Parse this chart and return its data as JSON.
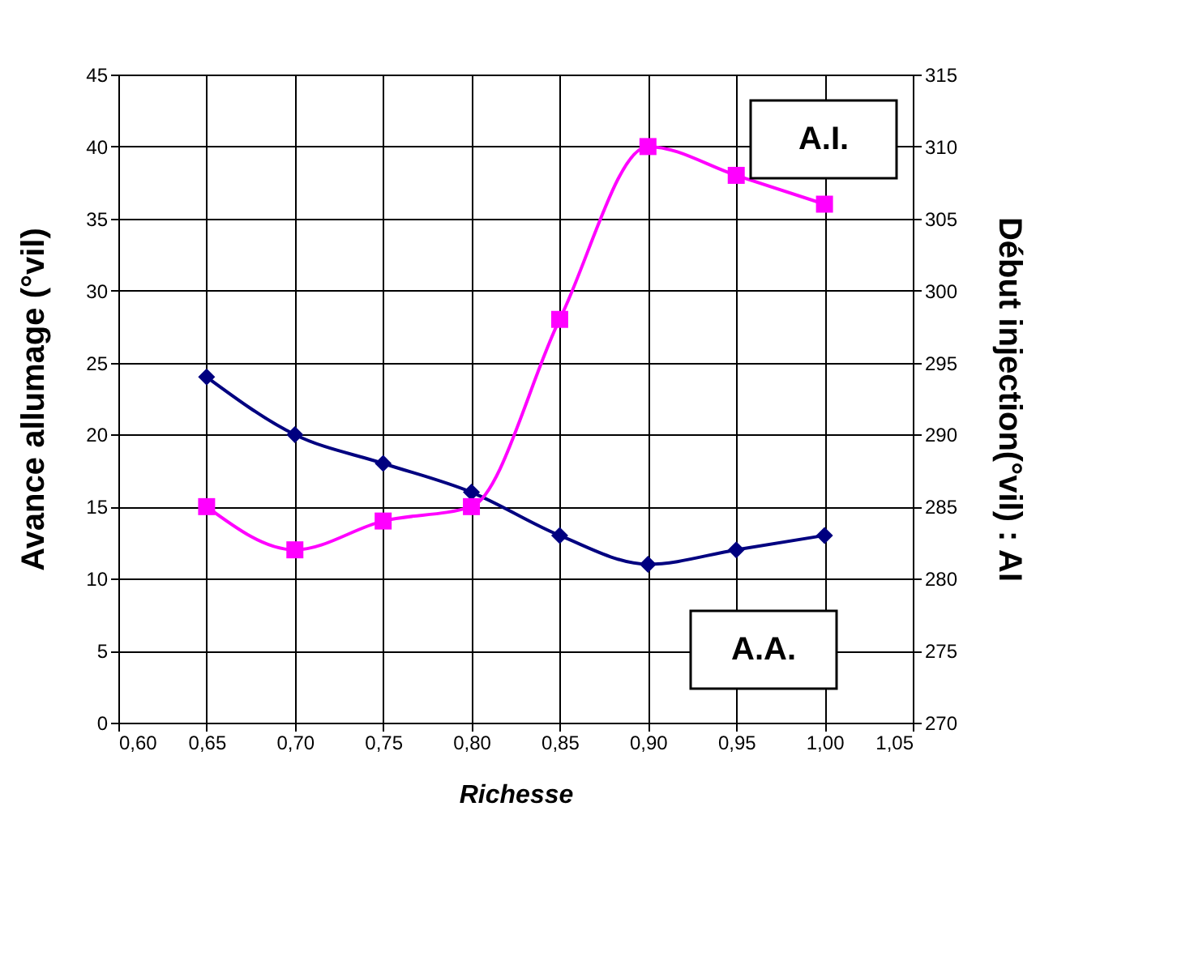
{
  "chart_data": {
    "type": "line",
    "xlabel": "Richesse",
    "ylabel": "Avance allumage (°vil)",
    "y2label": "Début injection(°vil) : AI",
    "x": [
      0.65,
      0.7,
      0.75,
      0.8,
      0.85,
      0.9,
      0.95,
      1.0
    ],
    "series": [
      {
        "name": "A.A.",
        "color": "#000080",
        "marker": "diamond",
        "values": [
          24,
          20,
          18,
          16,
          13,
          11,
          12,
          13
        ]
      },
      {
        "name": "A.I.",
        "color": "#ff00ff",
        "marker": "square",
        "axis": "y2",
        "values": [
          285,
          282,
          284,
          285,
          298,
          310,
          308,
          306
        ]
      }
    ],
    "xlim": [
      0.6,
      1.05
    ],
    "xticks": [
      {
        "value": 0.6,
        "label": "0,60"
      },
      {
        "value": 0.65,
        "label": "0,65"
      },
      {
        "value": 0.7,
        "label": "0,70"
      },
      {
        "value": 0.75,
        "label": "0,75"
      },
      {
        "value": 0.8,
        "label": "0,80"
      },
      {
        "value": 0.85,
        "label": "0,85"
      },
      {
        "value": 0.9,
        "label": "0,90"
      },
      {
        "value": 0.95,
        "label": "0,95"
      },
      {
        "value": 1.0,
        "label": "1,00"
      },
      {
        "value": 1.05,
        "label": "1,05"
      }
    ],
    "ylim": [
      0,
      45
    ],
    "yticks": [
      0,
      5,
      10,
      15,
      20,
      25,
      30,
      35,
      40,
      45
    ],
    "y2lim": [
      270,
      315
    ],
    "y2ticks": [
      270,
      275,
      280,
      285,
      290,
      295,
      300,
      305,
      310,
      315
    ],
    "grid": true,
    "legend": false
  }
}
